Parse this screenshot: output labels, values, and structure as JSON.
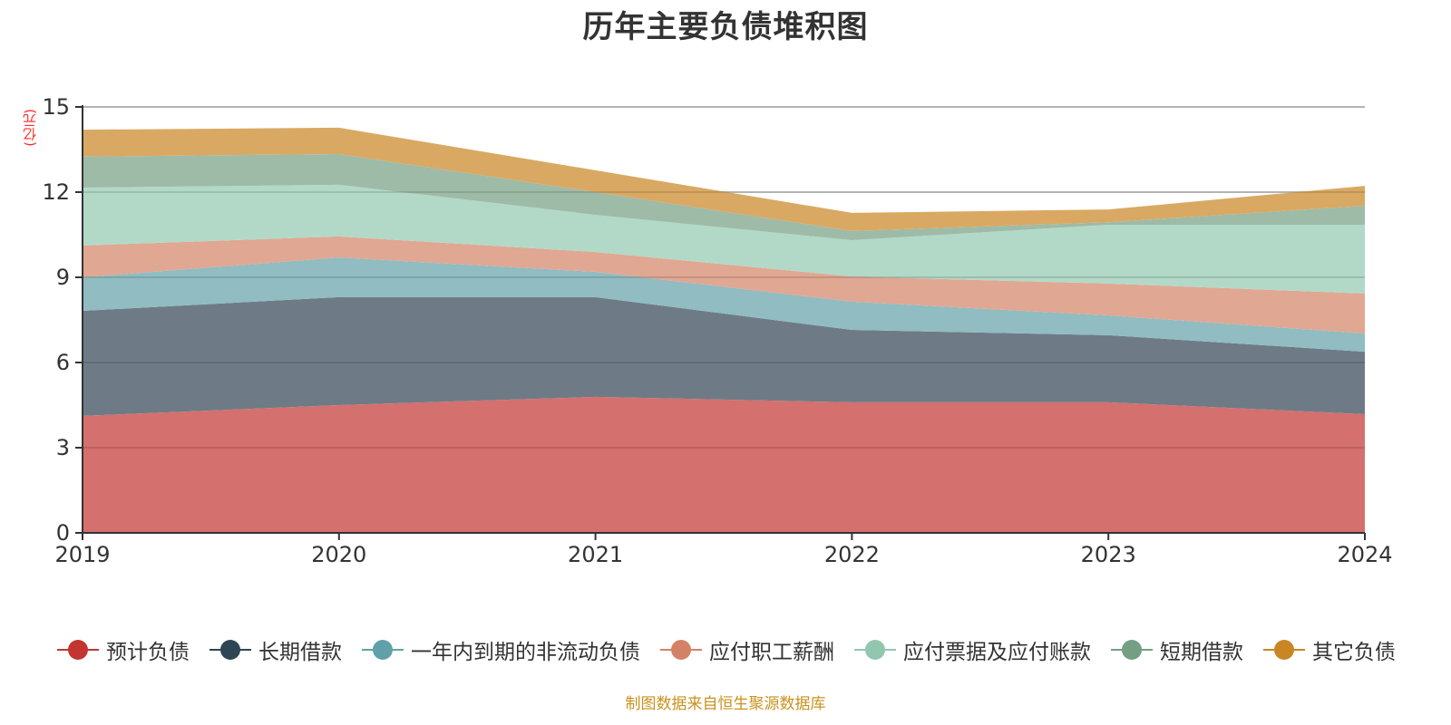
{
  "chart_data": {
    "type": "area",
    "stacked": true,
    "title": "历年主要负债堆积图",
    "ylabel": "(亿元)",
    "xlabel": "",
    "x": [
      "2019",
      "2020",
      "2021",
      "2022",
      "2023",
      "2024"
    ],
    "ylim": [
      0,
      15
    ],
    "yticks": [
      0,
      3,
      6,
      9,
      12,
      15
    ],
    "grid": true,
    "legend_position": "bottom",
    "series": [
      {
        "name": "预计负债",
        "color": "#c23531",
        "fill": "#d4706e",
        "values": [
          4.12,
          4.5,
          4.79,
          4.6,
          4.6,
          4.18
        ]
      },
      {
        "name": "长期借款",
        "color": "#2f4554",
        "fill": "#6e7b86",
        "values": [
          3.7,
          3.8,
          3.51,
          2.55,
          2.36,
          2.2
        ]
      },
      {
        "name": "一年内到期的非流动负债",
        "color": "#61a0a8",
        "fill": "#90bcc2",
        "values": [
          1.18,
          1.4,
          0.89,
          0.99,
          0.7,
          0.64
        ]
      },
      {
        "name": "应付职工薪酬",
        "color": "#d48265",
        "fill": "#e0a793",
        "values": [
          1.12,
          0.74,
          0.7,
          0.89,
          1.12,
          1.41
        ]
      },
      {
        "name": "应付票据及应付账款",
        "color": "#91c7ae",
        "fill": "#b2d9c7",
        "values": [
          2.04,
          1.82,
          1.31,
          1.28,
          2.07,
          2.42
        ]
      },
      {
        "name": "短期借款",
        "color": "#749f83",
        "fill": "#9ebba8",
        "values": [
          1.09,
          1.08,
          0.8,
          0.32,
          0.09,
          0.67
        ]
      },
      {
        "name": "其它负债",
        "color": "#ca8622",
        "fill": "#d9a963",
        "values": [
          0.95,
          0.93,
          0.77,
          0.64,
          0.45,
          0.7
        ]
      }
    ],
    "source_note": "制图数据来自恒生聚源数据库"
  }
}
